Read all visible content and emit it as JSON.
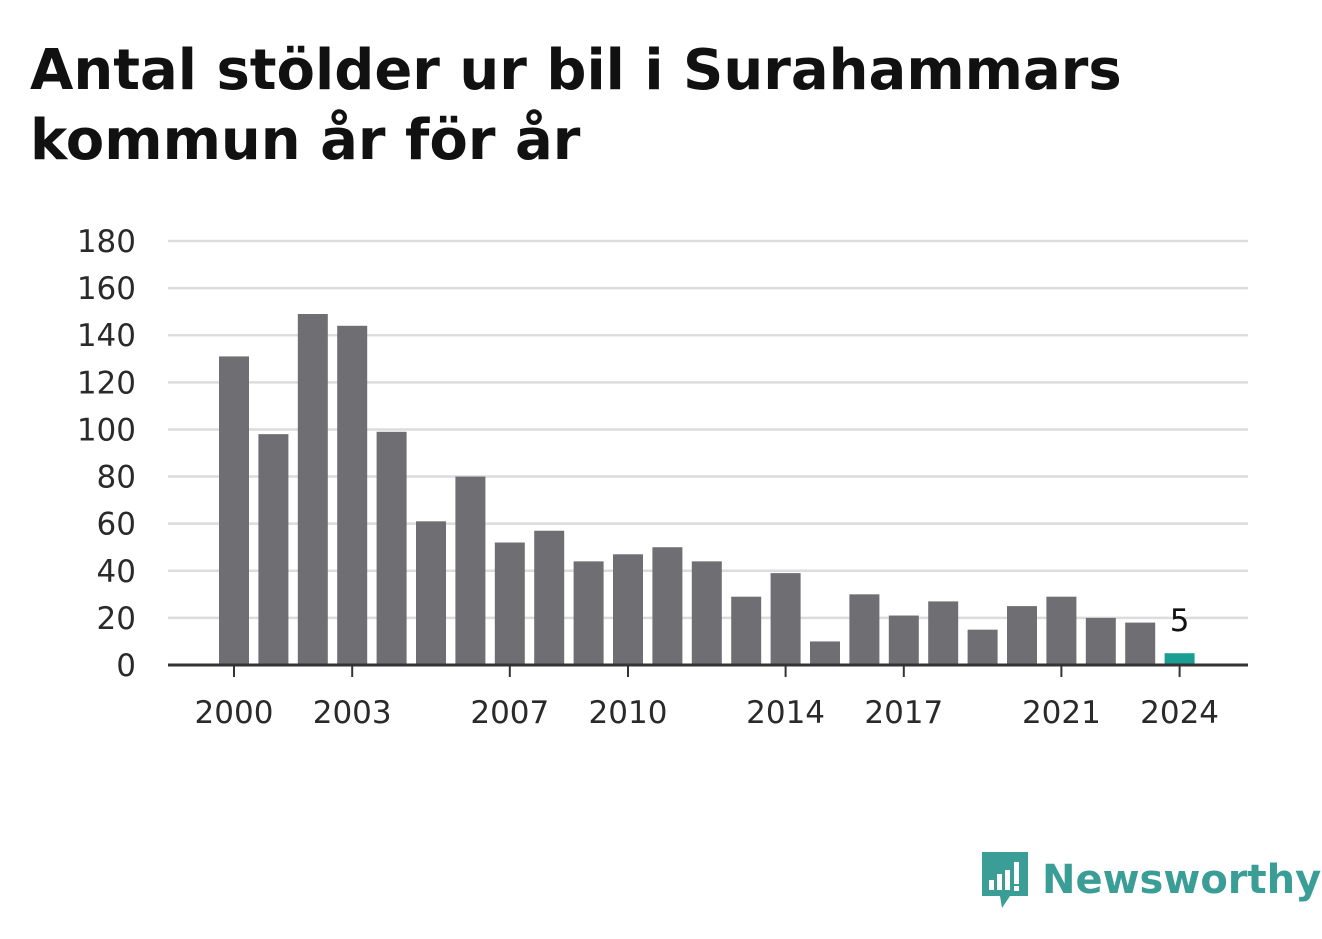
{
  "title": "Antal stölder ur bil i Surahammars kommun år för år",
  "brand": {
    "name": "Newsworthy",
    "icon": "newsworthy-logo-icon"
  },
  "colors": {
    "bar": "#6f6e73",
    "highlight": "#1a9e94",
    "grid": "#dcdcdc",
    "axis": "#333333",
    "brand": "#3a9e96"
  },
  "chart_data": {
    "type": "bar",
    "categories": [
      "2000",
      "2001",
      "2002",
      "2003",
      "2004",
      "2005",
      "2006",
      "2007",
      "2008",
      "2009",
      "2010",
      "2011",
      "2012",
      "2013",
      "2014",
      "2015",
      "2016",
      "2017",
      "2018",
      "2019",
      "2020",
      "2021",
      "2022",
      "2023",
      "2024"
    ],
    "values": [
      131,
      98,
      149,
      144,
      99,
      61,
      80,
      52,
      57,
      44,
      47,
      50,
      44,
      29,
      39,
      10,
      30,
      21,
      27,
      15,
      25,
      29,
      20,
      18,
      5
    ],
    "highlight_index": 24,
    "value_label": "5",
    "x_tick_labels": [
      "2000",
      "2003",
      "2007",
      "2010",
      "2014",
      "2017",
      "2021",
      "2024"
    ],
    "y_ticks": [
      "0",
      "20",
      "40",
      "60",
      "80",
      "100",
      "120",
      "140",
      "160",
      "180"
    ],
    "ylim": [
      0,
      180
    ],
    "grid": true,
    "xlabel": "",
    "ylabel": ""
  }
}
